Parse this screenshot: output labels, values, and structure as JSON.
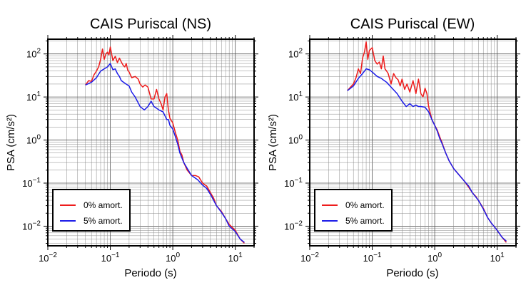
{
  "chart_data": [
    {
      "type": "line",
      "title": "CAIS Puriscal (NS)",
      "xlabel": "Periodo (s)",
      "ylabel": "PSA (cm/s²)",
      "xscale": "log",
      "yscale": "log",
      "xlim": [
        0.01,
        20
      ],
      "ylim": [
        0.0035,
        220
      ],
      "grid": true,
      "legend_position": "bottom-left",
      "xticks": [
        {
          "value": 0.01,
          "base": "10",
          "exp": "−2"
        },
        {
          "value": 0.1,
          "base": "10",
          "exp": "−1"
        },
        {
          "value": 1,
          "base": "10",
          "exp": "0"
        },
        {
          "value": 10,
          "base": "10",
          "exp": "1"
        }
      ],
      "yticks": [
        {
          "value": 0.01,
          "base": "10",
          "exp": "−2"
        },
        {
          "value": 0.1,
          "base": "10",
          "exp": "−1"
        },
        {
          "value": 1,
          "base": "10",
          "exp": "0"
        },
        {
          "value": 10,
          "base": "10",
          "exp": "1"
        },
        {
          "value": 100,
          "base": "10",
          "exp": "2"
        }
      ],
      "series": [
        {
          "name": "0% amort.",
          "color": "#ee1c1c",
          "points": [
            [
              0.04,
              19
            ],
            [
              0.045,
              24
            ],
            [
              0.05,
              23
            ],
            [
              0.055,
              33
            ],
            [
              0.06,
              40
            ],
            [
              0.065,
              50
            ],
            [
              0.07,
              75
            ],
            [
              0.075,
              130
            ],
            [
              0.08,
              75
            ],
            [
              0.085,
              100
            ],
            [
              0.09,
              110
            ],
            [
              0.095,
              95
            ],
            [
              0.1,
              145
            ],
            [
              0.11,
              70
            ],
            [
              0.12,
              88
            ],
            [
              0.13,
              63
            ],
            [
              0.14,
              80
            ],
            [
              0.15,
              65
            ],
            [
              0.16,
              55
            ],
            [
              0.17,
              50
            ],
            [
              0.18,
              60
            ],
            [
              0.19,
              42
            ],
            [
              0.2,
              38
            ],
            [
              0.22,
              28
            ],
            [
              0.25,
              30
            ],
            [
              0.28,
              26
            ],
            [
              0.3,
              20
            ],
            [
              0.33,
              17
            ],
            [
              0.36,
              19
            ],
            [
              0.4,
              17
            ],
            [
              0.45,
              9
            ],
            [
              0.5,
              9
            ],
            [
              0.55,
              15
            ],
            [
              0.6,
              9
            ],
            [
              0.65,
              7
            ],
            [
              0.7,
              5
            ],
            [
              0.75,
              10
            ],
            [
              0.8,
              12
            ],
            [
              0.85,
              5
            ],
            [
              0.9,
              3.2
            ],
            [
              1.0,
              2.5
            ],
            [
              1.1,
              1.5
            ],
            [
              1.2,
              1.0
            ],
            [
              1.3,
              0.55
            ],
            [
              1.4,
              0.45
            ],
            [
              1.5,
              0.3
            ],
            [
              1.7,
              0.2
            ],
            [
              2.0,
              0.15
            ],
            [
              2.3,
              0.15
            ],
            [
              2.6,
              0.14
            ],
            [
              3.0,
              0.1
            ],
            [
              3.5,
              0.085
            ],
            [
              4.0,
              0.06
            ],
            [
              4.5,
              0.045
            ],
            [
              5.0,
              0.03
            ],
            [
              6.0,
              0.022
            ],
            [
              7.0,
              0.015
            ],
            [
              8.0,
              0.011
            ],
            [
              10.0,
              0.008
            ],
            [
              12.0,
              0.005
            ],
            [
              14.0,
              0.004
            ]
          ]
        },
        {
          "name": "5% amort.",
          "color": "#1c1ce8",
          "points": [
            [
              0.04,
              19
            ],
            [
              0.05,
              22
            ],
            [
              0.06,
              28
            ],
            [
              0.07,
              40
            ],
            [
              0.08,
              45
            ],
            [
              0.09,
              50
            ],
            [
              0.1,
              60
            ],
            [
              0.11,
              43
            ],
            [
              0.12,
              45
            ],
            [
              0.13,
              35
            ],
            [
              0.14,
              30
            ],
            [
              0.15,
              24
            ],
            [
              0.17,
              21
            ],
            [
              0.2,
              18
            ],
            [
              0.22,
              13
            ],
            [
              0.25,
              10
            ],
            [
              0.3,
              6
            ],
            [
              0.35,
              5
            ],
            [
              0.4,
              6
            ],
            [
              0.45,
              8
            ],
            [
              0.5,
              6
            ],
            [
              0.55,
              5.5
            ],
            [
              0.6,
              5
            ],
            [
              0.7,
              4.5
            ],
            [
              0.8,
              3
            ],
            [
              0.85,
              3
            ],
            [
              0.9,
              2.2
            ],
            [
              1.0,
              1.8
            ],
            [
              1.1,
              1.2
            ],
            [
              1.2,
              0.8
            ],
            [
              1.3,
              0.5
            ],
            [
              1.5,
              0.3
            ],
            [
              1.7,
              0.22
            ],
            [
              2.0,
              0.15
            ],
            [
              2.5,
              0.12
            ],
            [
              3.0,
              0.09
            ],
            [
              3.5,
              0.075
            ],
            [
              4.0,
              0.055
            ],
            [
              4.5,
              0.04
            ],
            [
              5.0,
              0.03
            ],
            [
              6.0,
              0.021
            ],
            [
              7.0,
              0.015
            ],
            [
              8.0,
              0.01
            ],
            [
              10.0,
              0.0075
            ],
            [
              12.0,
              0.005
            ],
            [
              14.0,
              0.0042
            ]
          ]
        }
      ]
    },
    {
      "type": "line",
      "title": "CAIS Puriscal (EW)",
      "xlabel": "Periodo (s)",
      "ylabel": "PSA (cm/s²)",
      "xscale": "log",
      "yscale": "log",
      "xlim": [
        0.01,
        20
      ],
      "ylim": [
        0.0035,
        220
      ],
      "grid": true,
      "legend_position": "bottom-left",
      "xticks": [
        {
          "value": 0.01,
          "base": "10",
          "exp": "−2"
        },
        {
          "value": 0.1,
          "base": "10",
          "exp": "−1"
        },
        {
          "value": 1,
          "base": "10",
          "exp": "0"
        },
        {
          "value": 10,
          "base": "10",
          "exp": "1"
        }
      ],
      "yticks": [
        {
          "value": 0.01,
          "base": "10",
          "exp": "−2"
        },
        {
          "value": 0.1,
          "base": "10",
          "exp": "−1"
        },
        {
          "value": 1,
          "base": "10",
          "exp": "0"
        },
        {
          "value": 10,
          "base": "10",
          "exp": "1"
        },
        {
          "value": 100,
          "base": "10",
          "exp": "2"
        }
      ],
      "series": [
        {
          "name": "0% amort.",
          "color": "#ee1c1c",
          "points": [
            [
              0.04,
              14
            ],
            [
              0.045,
              17
            ],
            [
              0.05,
              20
            ],
            [
              0.055,
              28
            ],
            [
              0.06,
              45
            ],
            [
              0.065,
              35
            ],
            [
              0.07,
              80
            ],
            [
              0.075,
              110
            ],
            [
              0.08,
              190
            ],
            [
              0.085,
              75
            ],
            [
              0.09,
              120
            ],
            [
              0.1,
              140
            ],
            [
              0.11,
              70
            ],
            [
              0.12,
              58
            ],
            [
              0.13,
              65
            ],
            [
              0.14,
              45
            ],
            [
              0.15,
              90
            ],
            [
              0.16,
              45
            ],
            [
              0.17,
              40
            ],
            [
              0.18,
              35
            ],
            [
              0.2,
              20
            ],
            [
              0.22,
              35
            ],
            [
              0.24,
              28
            ],
            [
              0.26,
              25
            ],
            [
              0.28,
              18
            ],
            [
              0.3,
              26
            ],
            [
              0.33,
              15
            ],
            [
              0.36,
              20
            ],
            [
              0.4,
              13
            ],
            [
              0.45,
              24
            ],
            [
              0.5,
              12
            ],
            [
              0.55,
              26
            ],
            [
              0.6,
              12
            ],
            [
              0.65,
              10
            ],
            [
              0.7,
              16
            ],
            [
              0.75,
              12
            ],
            [
              0.8,
              6
            ],
            [
              0.9,
              3
            ],
            [
              1.0,
              2.2
            ],
            [
              1.1,
              1.7
            ],
            [
              1.2,
              1.2
            ],
            [
              1.3,
              0.9
            ],
            [
              1.5,
              0.5
            ],
            [
              1.7,
              0.33
            ],
            [
              2.0,
              0.22
            ],
            [
              2.5,
              0.15
            ],
            [
              3.0,
              0.11
            ],
            [
              3.5,
              0.08
            ],
            [
              4.0,
              0.06
            ],
            [
              4.5,
              0.05
            ],
            [
              5.0,
              0.04
            ],
            [
              6.0,
              0.026
            ],
            [
              7.0,
              0.016
            ],
            [
              8.0,
              0.012
            ],
            [
              10.0,
              0.008
            ],
            [
              12.0,
              0.0055
            ],
            [
              14.0,
              0.0042
            ]
          ]
        },
        {
          "name": "5% amort.",
          "color": "#1c1ce8",
          "points": [
            [
              0.04,
              14
            ],
            [
              0.05,
              18
            ],
            [
              0.06,
              27
            ],
            [
              0.07,
              35
            ],
            [
              0.08,
              45
            ],
            [
              0.09,
              43
            ],
            [
              0.1,
              38
            ],
            [
              0.12,
              30
            ],
            [
              0.14,
              27
            ],
            [
              0.15,
              25
            ],
            [
              0.17,
              22
            ],
            [
              0.2,
              17
            ],
            [
              0.25,
              12
            ],
            [
              0.3,
              8
            ],
            [
              0.35,
              6
            ],
            [
              0.4,
              7
            ],
            [
              0.45,
              6
            ],
            [
              0.5,
              6.5
            ],
            [
              0.55,
              6
            ],
            [
              0.6,
              6
            ],
            [
              0.7,
              5.8
            ],
            [
              0.8,
              4.5
            ],
            [
              0.9,
              3
            ],
            [
              1.0,
              2.2
            ],
            [
              1.1,
              1.6
            ],
            [
              1.2,
              1.1
            ],
            [
              1.3,
              0.85
            ],
            [
              1.5,
              0.5
            ],
            [
              1.7,
              0.33
            ],
            [
              2.0,
              0.22
            ],
            [
              2.5,
              0.15
            ],
            [
              3.0,
              0.11
            ],
            [
              3.5,
              0.085
            ],
            [
              4.0,
              0.06
            ],
            [
              5.0,
              0.04
            ],
            [
              6.0,
              0.025
            ],
            [
              7.0,
              0.016
            ],
            [
              8.0,
              0.012
            ],
            [
              10.0,
              0.008
            ],
            [
              12.0,
              0.0055
            ],
            [
              14.0,
              0.0045
            ]
          ]
        }
      ]
    }
  ]
}
